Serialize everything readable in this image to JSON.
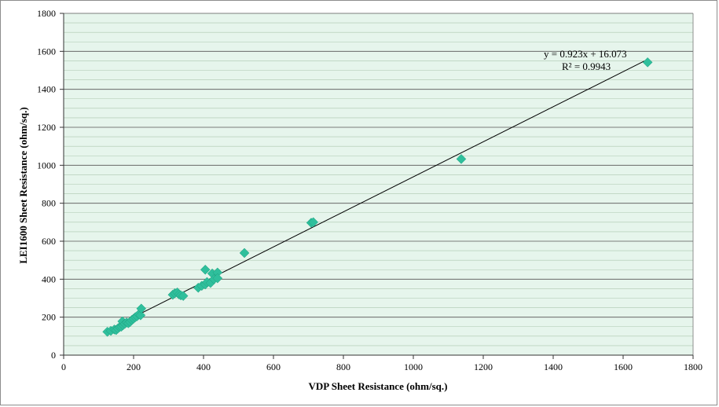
{
  "chart_data": {
    "type": "scatter",
    "title": "",
    "xlabel": "VDP Sheet Resistance (ohm/sq.)",
    "ylabel": "LEI1600 Sheet Resistance (ohm/sq.)",
    "xlim": [
      0,
      1800
    ],
    "ylim": [
      0,
      1800
    ],
    "x_ticks": [
      0,
      200,
      400,
      600,
      800,
      1000,
      1200,
      1400,
      1600,
      1800
    ],
    "y_ticks": [
      0,
      200,
      400,
      600,
      800,
      1000,
      1200,
      1400,
      1600,
      1800
    ],
    "y_minor_step": 50,
    "grid": true,
    "legend": "none",
    "colors": {
      "plot_background": "#e6f5ec",
      "gridline": "#86a986",
      "marker": "#2fbf9c",
      "marker_stroke": "#1e9e7e",
      "trendline": "#000000"
    },
    "series": [
      {
        "marker": "diamond",
        "points": [
          [
            125,
            123
          ],
          [
            135,
            128
          ],
          [
            145,
            135
          ],
          [
            150,
            132
          ],
          [
            155,
            140
          ],
          [
            160,
            148
          ],
          [
            165,
            150
          ],
          [
            170,
            158
          ],
          [
            168,
            178
          ],
          [
            175,
            165
          ],
          [
            180,
            172
          ],
          [
            185,
            168
          ],
          [
            190,
            175
          ],
          [
            195,
            185
          ],
          [
            200,
            192
          ],
          [
            205,
            200
          ],
          [
            210,
            205
          ],
          [
            215,
            215
          ],
          [
            220,
            210
          ],
          [
            222,
            245
          ],
          [
            312,
            318
          ],
          [
            318,
            326
          ],
          [
            325,
            330
          ],
          [
            330,
            320
          ],
          [
            335,
            315
          ],
          [
            342,
            312
          ],
          [
            385,
            355
          ],
          [
            395,
            365
          ],
          [
            405,
            372
          ],
          [
            405,
            450
          ],
          [
            410,
            385
          ],
          [
            420,
            380
          ],
          [
            425,
            430
          ],
          [
            430,
            400
          ],
          [
            440,
            435
          ],
          [
            440,
            405
          ],
          [
            517,
            538
          ],
          [
            708,
            697
          ],
          [
            714,
            700
          ],
          [
            1137,
            1033
          ],
          [
            1670,
            1542
          ]
        ]
      }
    ],
    "trendline": {
      "type": "linear",
      "slope": 0.923,
      "intercept": 16.073,
      "x_range": [
        120,
        1670
      ],
      "equation": "y = 0.923x + 16.073",
      "r_squared": "R² = 0.9943"
    }
  }
}
